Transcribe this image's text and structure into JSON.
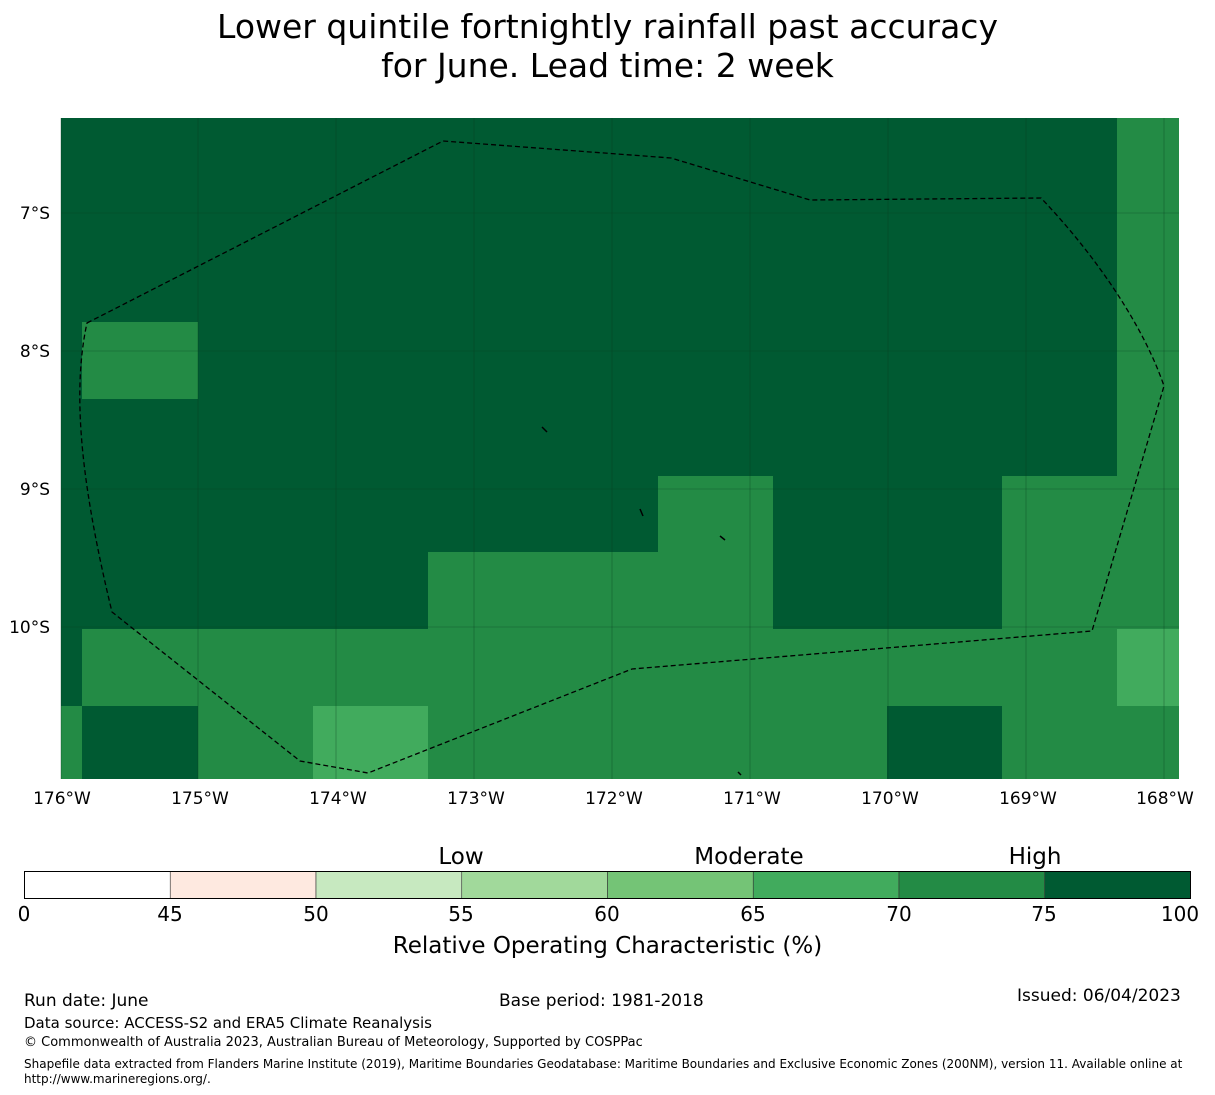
{
  "title": {
    "line1": "Lower quintile fortnightly rainfall past accuracy",
    "line2": "for June. Lead time: 2 week"
  },
  "map": {
    "lat_labels": [
      "7°S",
      "8°S",
      "9°S",
      "10°S"
    ],
    "lon_labels": [
      "176°W",
      "175°W",
      "174°W",
      "173°W",
      "172°W",
      "171°W",
      "170°W",
      "169°W",
      "168°W"
    ],
    "lon_range": [
      -176.1,
      -168.0
    ],
    "lat_range": [
      -11.1,
      -6.3
    ],
    "colors": {
      "dark": "#005a32",
      "mid": "#238b45",
      "light": "#41ab5d"
    }
  },
  "colorbar": {
    "category_labels": [
      "Low",
      "Moderate",
      "High"
    ],
    "ticks": [
      "0",
      "45",
      "50",
      "55",
      "60",
      "65",
      "70",
      "75",
      "100"
    ],
    "colors": [
      "#ffffff",
      "#fee9e0",
      "#c7e9c0",
      "#a1d99b",
      "#74c476",
      "#41ab5d",
      "#238b45",
      "#005a32"
    ],
    "label": "Relative Operating Characteristic (%)"
  },
  "footer": {
    "run_date": "Run date: June",
    "base_period": "Base period: 1981-2018",
    "issued": "Issued: 06/04/2023",
    "data_source": "Data source: ACCESS-S2 and ERA5 Climate Reanalysis",
    "copyright": "© Commonwealth of Australia 2023, Australian Bureau of Meteorology, Supported by COSPPac",
    "shapefile": "Shapefile data extracted from Flanders Marine Institute (2019), Maritime Boundaries Geodatabase: Maritime Boundaries and Exclusive Economic Zones (200NM), version 11. Available online at http://www.marineregions.org/."
  }
}
